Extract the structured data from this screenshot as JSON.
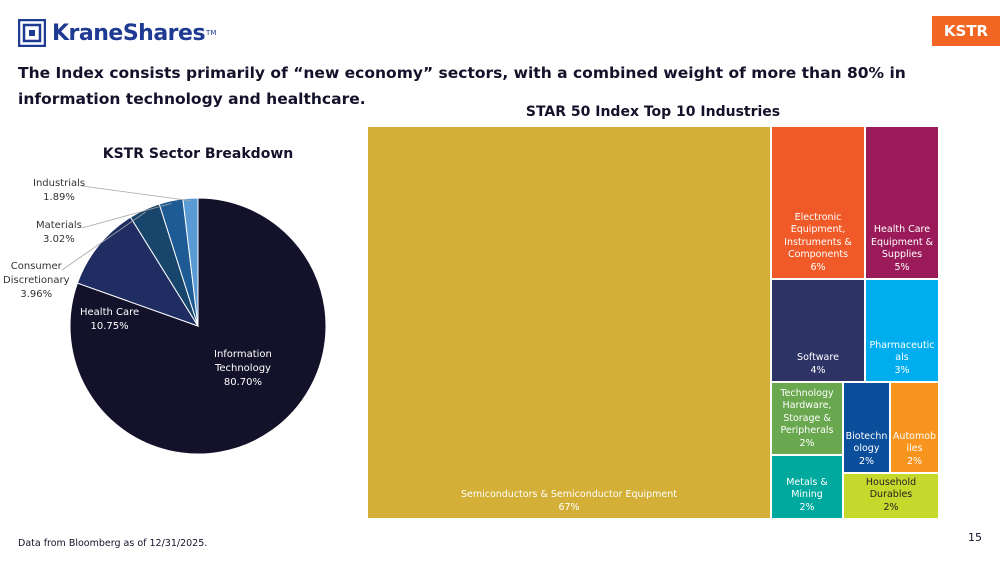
{
  "brand": {
    "name": "KraneShares",
    "tm": "TM"
  },
  "ticker": "KSTR",
  "headline": "The Index consists primarily of “new economy” sectors, with a combined weight of more than 80% in information technology and healthcare.",
  "colors": {
    "brand_blue": "#1f3a93",
    "accent_orange": "#f26522"
  },
  "chart_data": [
    {
      "type": "pie",
      "title": "KSTR Sector Breakdown",
      "slices": [
        {
          "name": "Information Technology",
          "label_lines": [
            "Information",
            "Technology"
          ],
          "value": 80.7,
          "display": "80.70%",
          "color": "#13122a"
        },
        {
          "name": "Health Care",
          "label_lines": [
            "Health Care"
          ],
          "value": 10.75,
          "display": "10.75%",
          "color": "#1f2d63"
        },
        {
          "name": "Consumer Discretionary",
          "label_lines": [
            "Consumer",
            "Discretionary"
          ],
          "value": 3.96,
          "display": "3.96%",
          "color": "#17456b"
        },
        {
          "name": "Materials",
          "label_lines": [
            "Materials"
          ],
          "value": 3.02,
          "display": "3.02%",
          "color": "#1e5a94"
        },
        {
          "name": "Industrials",
          "label_lines": [
            "Industrials"
          ],
          "value": 1.89,
          "display": "1.89%",
          "color": "#5b9bd5"
        }
      ]
    },
    {
      "type": "treemap",
      "title": "STAR 50 Index Top 10 Industries",
      "tiles": [
        {
          "name": "Semiconductors & Semiconductor Equipment",
          "value": 67,
          "display": "67%",
          "color": "#d4af37"
        },
        {
          "name": "Electronic Equipment, Instruments & Components",
          "value": 6,
          "display": "6%",
          "color": "#f05a28"
        },
        {
          "name": "Health Care Equipment & Supplies",
          "value": 5,
          "display": "5%",
          "color": "#9b1b5a"
        },
        {
          "name": "Software",
          "value": 4,
          "display": "4%",
          "color": "#2e3366"
        },
        {
          "name": "Pharmaceuticals",
          "value": 3,
          "display": "3%",
          "color": "#00aeef"
        },
        {
          "name": "Technology Hardware, Storage & Peripherals",
          "value": 2,
          "display": "2%",
          "color": "#6aa84f"
        },
        {
          "name": "Biotechnology",
          "value": 2,
          "display": "2%",
          "color": "#0b4f9c"
        },
        {
          "name": "Automobiles",
          "value": 2,
          "display": "2%",
          "color": "#f7941d"
        },
        {
          "name": "Metals & Mining",
          "value": 2,
          "display": "2%",
          "color": "#00a99d"
        },
        {
          "name": "Household Durables",
          "value": 2,
          "display": "2%",
          "color": "#c5d92d"
        }
      ]
    }
  ],
  "footnote": "Data from Bloomberg as of 12/31/2025.",
  "page_number": "15"
}
